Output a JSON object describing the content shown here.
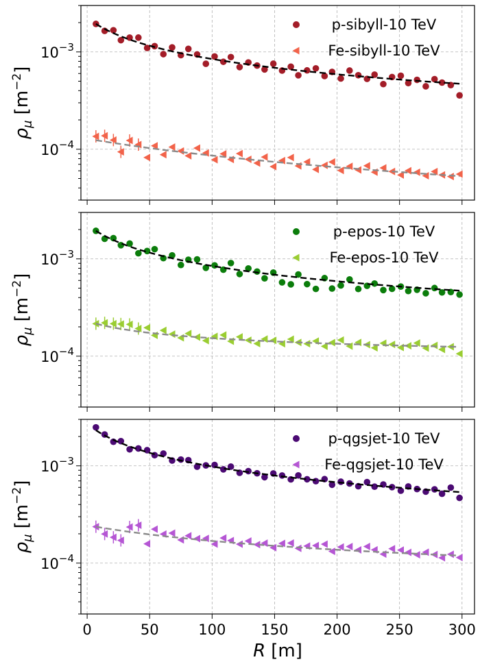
{
  "chart_data": {
    "type": "scatter",
    "shared_x": {
      "label_symbol": "R",
      "label_unit": "[m]",
      "ticks": [
        0,
        50,
        100,
        150,
        200,
        250,
        300
      ],
      "xlim": [
        -5,
        310
      ]
    },
    "y_scale": "log",
    "ylim": [
      3e-05,
      0.003
    ],
    "ylabel_symbol": "ρ",
    "ylabel_sub": "μ",
    "ylabel_unit": "[m",
    "ylabel_exp": "−2",
    "ylabel_close": "]",
    "grid": true,
    "legend_position": "upper right",
    "panels": [
      {
        "y_major_ticks": [
          {
            "mantissa": "10",
            "exp": "−3",
            "value": 0.001
          },
          {
            "mantissa": "10",
            "exp": "−4",
            "value": 0.0001
          }
        ],
        "series": [
          {
            "name": "p-sibyll-10 TeV",
            "marker": "circle",
            "color": "#a31d28",
            "fit_color": "#000000",
            "fit": {
              "A": 0.00225,
              "r0": 26,
              "n": 0.62,
              "B": 0
            },
            "noise": [
              0,
              -0.02,
              0.03,
              -0.04,
              0.02,
              0.05,
              -0.03,
              0.01,
              -0.05,
              0.04,
              -0.02,
              0.06,
              0.02,
              -0.06,
              0.03,
              -0.01,
              0.05,
              -0.04,
              0.02,
              0.0,
              -0.03,
              0.04,
              -0.02,
              0.03,
              -0.05,
              0.01,
              0.04,
              -0.03,
              0.02,
              -0.04,
              0.05,
              0.01,
              -0.02,
              0.03,
              -0.06,
              0.02,
              0.04,
              -0.03,
              0.01,
              -0.05,
              0.03,
              0.0,
              -0.02,
              -0.12
            ]
          },
          {
            "name": "Fe-sibyll-10 TeV",
            "marker": "triangle-left",
            "color": "#f2634a",
            "fit_color": "#8a8a8a",
            "fit": {
              "A": 0.000128,
              "r0": 185,
              "n": 0.92,
              "B": 0
            },
            "noise": [
              0.04,
              0.06,
              0.03,
              -0.08,
              0.05,
              0.02,
              -0.1,
              0.03,
              -0.05,
              0.04,
              0.01,
              -0.03,
              0.06,
              0.02,
              -0.04,
              0.03,
              -0.02,
              0.05,
              0.0,
              -0.03,
              0.04,
              -0.05,
              0.02,
              0.06,
              -0.02,
              0.03,
              -0.04,
              0.01,
              0.05,
              -0.03,
              0.02,
              -0.01,
              0.04,
              -0.02,
              0.03,
              0.0,
              -0.03,
              0.02,
              0.01,
              -0.02,
              0.03,
              0.0,
              -0.01,
              0.02
            ]
          }
        ]
      },
      {
        "y_major_ticks": [
          {
            "mantissa": "10",
            "exp": "−3",
            "value": 0.001
          },
          {
            "mantissa": "10",
            "exp": "−4",
            "value": 0.0001
          }
        ],
        "series": [
          {
            "name": "p-epos-10 TeV",
            "marker": "circle",
            "color": "#0b7d0b",
            "fit_color": "#000000",
            "fit": {
              "A": 0.00225,
              "r0": 26,
              "n": 0.62,
              "B": 0
            },
            "noise": [
              0,
              -0.03,
              0.02,
              -0.02,
              0.03,
              -0.04,
              0.01,
              0.05,
              -0.02,
              0.03,
              -0.05,
              0.02,
              0.04,
              -0.03,
              0.01,
              -0.02,
              0.06,
              -0.04,
              0.03,
              0.01,
              -0.05,
              0.02,
              -0.07,
              -0.08,
              0.03,
              -0.06,
              -0.1,
              0.02,
              -0.08,
              -0.04,
              0.03,
              -0.06,
              -0.02,
              0.01,
              -0.05,
              -0.03,
              0.0,
              -0.04,
              -0.02,
              -0.05,
              0.01,
              -0.03,
              -0.02,
              -0.04
            ]
          },
          {
            "name": "Fe-epos-10 TeV",
            "marker": "triangle-left",
            "color": "#9acd32",
            "fit_color": "#8a8a8a",
            "fit": {
              "A": 0.000155,
              "r0": 35,
              "n": 0.5,
              "B": 7.42e-05
            },
            "noise": [
              0.0,
              0.03,
              0.04,
              0.05,
              0.06,
              0.03,
              0.05,
              -0.02,
              0.04,
              0.01,
              -0.02,
              0.03,
              0.0,
              -0.03,
              0.02,
              0.04,
              -0.02,
              0.03,
              0.0,
              -0.03,
              0.02,
              0.01,
              -0.02,
              0.03,
              0.0,
              -0.01,
              0.02,
              -0.03,
              0.01,
              0.04,
              -0.02,
              0.02,
              0.0,
              -0.03,
              0.02,
              0.01,
              -0.02,
              0.0,
              0.03,
              -0.02,
              0.01,
              -0.03,
              0.0,
              -0.07
            ]
          }
        ]
      },
      {
        "y_major_ticks": [
          {
            "mantissa": "10",
            "exp": "−3",
            "value": 0.001
          },
          {
            "mantissa": "10",
            "exp": "−4",
            "value": 0.0001
          }
        ],
        "series": [
          {
            "name": "p-qgsjet-10 TeV",
            "marker": "circle",
            "color": "#4b0a73",
            "fit_color": "#000000",
            "fit": {
              "A": 0.0027,
              "r0": 26,
              "n": 0.64,
              "B": 0
            },
            "noise": [
              0.03,
              0.01,
              -0.02,
              0.02,
              -0.03,
              0.01,
              0.02,
              -0.01,
              0.03,
              -0.02,
              0.01,
              0.02,
              -0.03,
              0.0,
              0.02,
              -0.01,
              0.03,
              -0.02,
              0.01,
              0.0,
              -0.03,
              0.02,
              0.01,
              -0.02,
              0.03,
              0.0,
              -0.01,
              0.02,
              -0.03,
              0.01,
              0.0,
              -0.02,
              0.03,
              -0.01,
              0.02,
              0.0,
              -0.03,
              0.02,
              0.0,
              -0.02,
              0.01,
              -0.03,
              0.04,
              -0.06
            ]
          },
          {
            "name": "Fe-qgsjet-10 TeV",
            "marker": "triangle-left",
            "color": "#b556d4",
            "fit_color": "#8a8a8a",
            "fit": {
              "A": 0.00021,
              "r0": 110,
              "n": 0.7,
              "B": 3.55e-05
            },
            "noise": [
              0.0,
              -0.06,
              -0.08,
              -0.1,
              0.05,
              0.08,
              -0.1,
              0.06,
              0.02,
              0.04,
              -0.02,
              0.03,
              0.01,
              0.02,
              -0.03,
              0.04,
              0.02,
              -0.01,
              0.03,
              0.0,
              0.02,
              -0.02,
              0.03,
              0.04,
              -0.01,
              0.02,
              0.03,
              0.05,
              -0.02,
              0.03,
              0.04,
              0.01,
              0.05,
              0.02,
              -0.02,
              0.04,
              0.03,
              0.01,
              -0.01,
              0.02,
              0.0,
              -0.03,
              0.01,
              -0.02
            ]
          }
        ]
      }
    ]
  }
}
